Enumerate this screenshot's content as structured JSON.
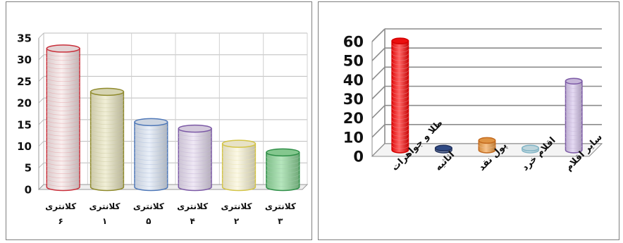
{
  "chart_data": [
    {
      "type": "bar",
      "shape": "cylinder",
      "categories": [
        [
          "کلانتری",
          "۶"
        ],
        [
          "کلانتری",
          "۱"
        ],
        [
          "کلانتری",
          "۵"
        ],
        [
          "کلانتری",
          "۴"
        ],
        [
          "کلانتری",
          "۲"
        ],
        [
          "کلانتری",
          "۳"
        ]
      ],
      "values": [
        32,
        22,
        15,
        13.5,
        10,
        8
      ],
      "colors": [
        "#c9303b",
        "#8f8a2c",
        "#4f78b8",
        "#7c5aa6",
        "#d3c447",
        "#2f8f48"
      ],
      "fills": [
        "#f7e6e7",
        "#e9e6c2",
        "#dfe8f5",
        "#e6dcef",
        "#fbf6d8",
        "#8fd89a"
      ],
      "ylim": [
        0,
        35
      ],
      "yticks": [
        0,
        5,
        10,
        15,
        20,
        25,
        30,
        35
      ],
      "grid": true
    },
    {
      "type": "bar",
      "shape": "cylinder",
      "categories": [
        "طلا و جواهرات",
        "اثاثیه",
        "پول نقد",
        "اقلام خرد",
        "سایر اقلام"
      ],
      "values": [
        57,
        1,
        5,
        1,
        36
      ],
      "colors": [
        "#d40000",
        "#1f2f5a",
        "#c36a1f",
        "#7fb3c4",
        "#7c5aa6"
      ],
      "fills": [
        "#ff1010",
        "#34508f",
        "#f2a14a",
        "#cfe7ef",
        "#d7c6ec"
      ],
      "ylim": [
        0,
        60
      ],
      "yticks": [
        0,
        10,
        20,
        30,
        40,
        50,
        60
      ],
      "grid": true
    }
  ]
}
